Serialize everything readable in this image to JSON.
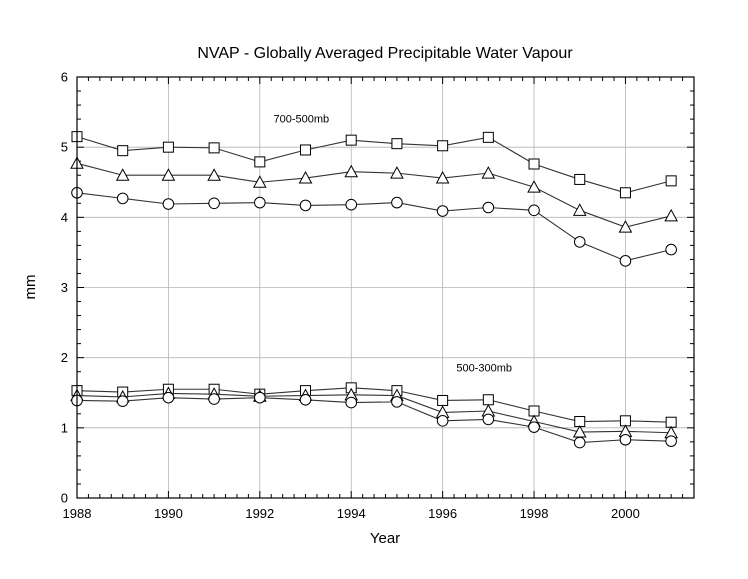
{
  "chart_data": {
    "type": "line",
    "title": "NVAP - Globally Averaged Precipitable Water Vapour",
    "xlabel": "Year",
    "ylabel": "mm",
    "xlim": [
      1988,
      2001.5
    ],
    "ylim": [
      0,
      6
    ],
    "x_ticks": [
      1988,
      1990,
      1992,
      1994,
      1996,
      1998,
      2000
    ],
    "x_tick_labels": [
      "1988",
      "1990",
      "1992",
      "1994",
      "1996",
      "1998",
      "2000"
    ],
    "y_ticks": [
      0,
      1,
      2,
      3,
      4,
      5,
      6
    ],
    "y_tick_labels": [
      "0",
      "1",
      "2",
      "3",
      "4",
      "5",
      "6"
    ],
    "grid": true,
    "x": [
      1988,
      1989,
      1990,
      1991,
      1992,
      1993,
      1994,
      1995,
      1996,
      1997,
      1998,
      1999,
      2000,
      2001
    ],
    "annotations": [
      {
        "text": "700-500mb",
        "x": 1992.3,
        "y": 5.35
      },
      {
        "text": "500-300mb",
        "x": 1996.3,
        "y": 1.8
      }
    ],
    "series": [
      {
        "marker": "square",
        "group": "700-500mb",
        "values": [
          5.15,
          4.95,
          5.0,
          4.99,
          4.79,
          4.96,
          5.1,
          5.05,
          5.02,
          5.14,
          4.76,
          4.54,
          4.35,
          4.52
        ]
      },
      {
        "marker": "triangle",
        "group": "700-500mb",
        "values": [
          4.77,
          4.6,
          4.6,
          4.6,
          4.5,
          4.56,
          4.65,
          4.63,
          4.56,
          4.63,
          4.43,
          4.1,
          3.86,
          4.02
        ]
      },
      {
        "marker": "circle",
        "group": "700-500mb",
        "values": [
          4.35,
          4.27,
          4.19,
          4.2,
          4.21,
          4.17,
          4.18,
          4.21,
          4.09,
          4.14,
          4.1,
          3.65,
          3.38,
          3.54
        ]
      },
      {
        "marker": "square",
        "group": "500-300mb",
        "values": [
          1.53,
          1.51,
          1.55,
          1.55,
          1.48,
          1.53,
          1.57,
          1.53,
          1.39,
          1.4,
          1.24,
          1.09,
          1.1,
          1.08
        ]
      },
      {
        "marker": "triangle",
        "group": "500-300mb",
        "values": [
          1.46,
          1.44,
          1.49,
          1.48,
          1.45,
          1.46,
          1.47,
          1.46,
          1.22,
          1.24,
          1.09,
          0.94,
          0.95,
          0.93
        ]
      },
      {
        "marker": "circle",
        "group": "500-300mb",
        "values": [
          1.39,
          1.38,
          1.43,
          1.41,
          1.43,
          1.4,
          1.36,
          1.37,
          1.1,
          1.12,
          1.01,
          0.79,
          0.83,
          0.81
        ]
      }
    ]
  }
}
